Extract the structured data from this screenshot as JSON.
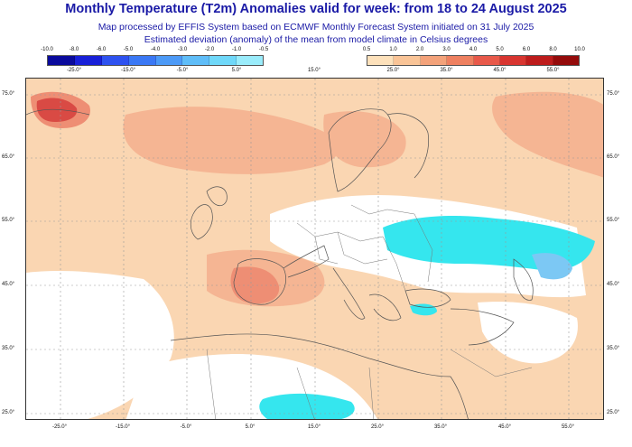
{
  "title": "Monthly Temperature (T2m) Anomalies valid for week: from 18 to 24 August 2025",
  "subtitle_line1": "Map processed by EFFIS System based on ECMWF Monthly Forecast System initiated on 31 July 2025",
  "subtitle_line2": "Estimated deviation (anomaly) of the mean from model climate in Celsius degrees",
  "legend_cold": {
    "labels": [
      "-10.0",
      "-8.0",
      "-6.0",
      "-5.0",
      "-4.0",
      "-3.0",
      "-2.0",
      "-1.0",
      "-0.5"
    ],
    "colors": [
      "#0a0a9c",
      "#1820d8",
      "#2e52f0",
      "#3a78f5",
      "#4c9af7",
      "#5fbdf8",
      "#6fd8f9",
      "#9aecfb"
    ],
    "lon_labels": [
      "-25.0°",
      "-15.0°",
      "-5.0°",
      "5.0°"
    ]
  },
  "legend_warm": {
    "labels": [
      "0.5",
      "1.0",
      "2.0",
      "3.0",
      "4.0",
      "5.0",
      "6.0",
      "8.0",
      "10.0"
    ],
    "colors": [
      "#fde1bb",
      "#f9c497",
      "#f3a27a",
      "#ee8060",
      "#e8594a",
      "#d83530",
      "#bd1c1c",
      "#940b0b"
    ],
    "lon_labels": [
      "25.0°",
      "35.0°",
      "45.0°",
      "55.0°"
    ]
  },
  "top_middle_lon": "15.0°",
  "lat_labels": [
    "75.0°",
    "65.0°",
    "55.0°",
    "45.0°",
    "35.0°",
    "25.0°"
  ],
  "lon_labels_bottom": [
    "-25.0°",
    "-15.0°",
    "-5.0°",
    "5.0°",
    "15.0°",
    "25.0°",
    "35.0°",
    "45.0°",
    "55.0°"
  ],
  "map_colors": {
    "warm_light": "#fad6b2",
    "warm_mid": "#f5b593",
    "warm_strong": "#ee8e74",
    "hot": "#d94a44",
    "cold": "#35e6ee",
    "cold_mid": "#7cc8f4",
    "coast": "#555555",
    "grid": "#999999"
  }
}
